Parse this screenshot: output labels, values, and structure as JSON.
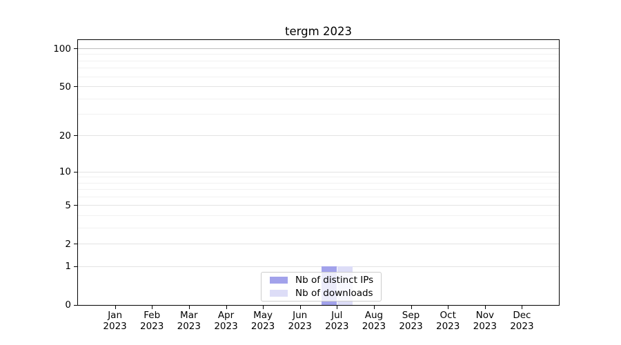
{
  "chart_data": {
    "type": "bar",
    "title": "tergm 2023",
    "y_scale": "log1p",
    "ylim": [
      0,
      117
    ],
    "grid": "horizontal",
    "legend_position": "lower-center",
    "year": "2023",
    "categories": [
      "Jan",
      "Feb",
      "Mar",
      "Apr",
      "May",
      "Jun",
      "Jul",
      "Aug",
      "Sep",
      "Oct",
      "Nov",
      "Dec"
    ],
    "series": [
      {
        "name": "Nb of distinct IPs",
        "color": "#a2a2eb",
        "values": [
          0,
          0,
          0,
          0,
          0,
          0,
          1,
          0,
          0,
          0,
          0,
          0
        ]
      },
      {
        "name": "Nb of downloads",
        "color": "#ddddf7",
        "values": [
          0,
          0,
          0,
          0,
          0,
          0,
          1,
          0,
          0,
          0,
          0,
          0
        ]
      }
    ],
    "y_ticks": [
      100,
      50,
      20,
      10,
      5,
      2,
      1,
      0
    ],
    "y_minor_gridlines": [
      3,
      4,
      6,
      7,
      8,
      9,
      30,
      40,
      60,
      70,
      80,
      90
    ],
    "gridline_colors": {
      "top": "#bdbdbd",
      "major": "#e3e3e3",
      "minor": "#f1f1f1"
    }
  }
}
